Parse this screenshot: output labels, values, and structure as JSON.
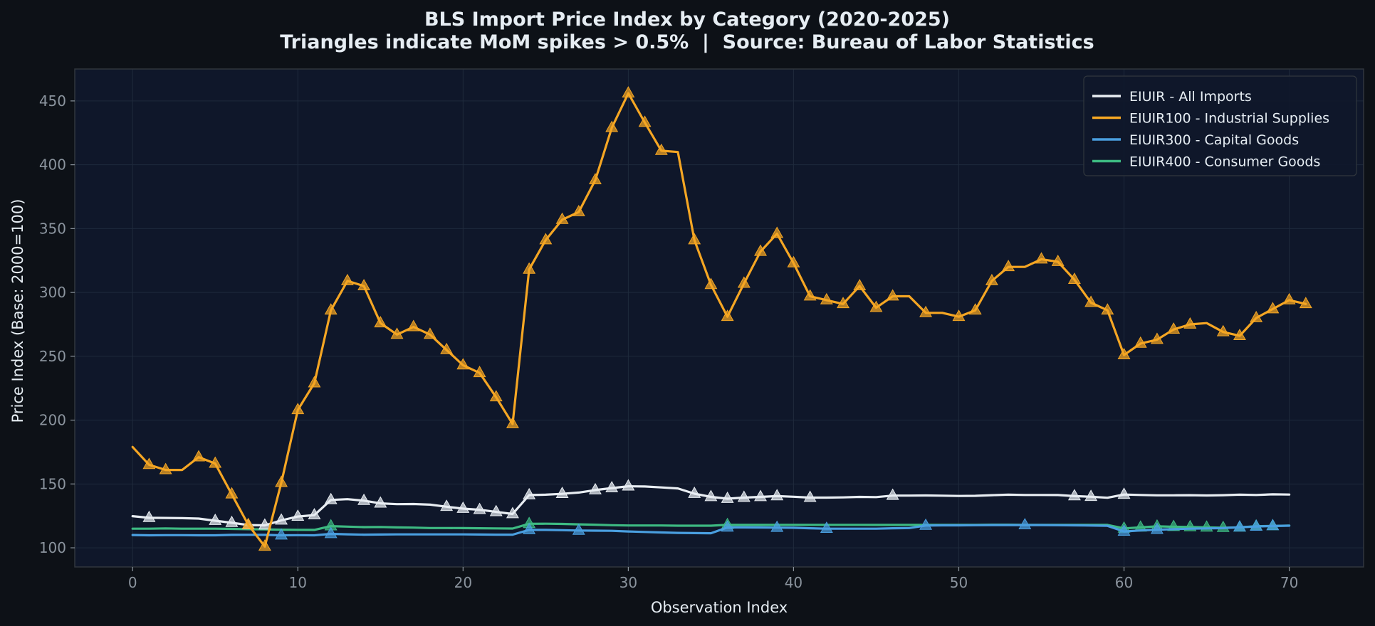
{
  "chart_data": {
    "type": "line",
    "title": "BLS Import Price Index by Category (2020-2025)",
    "subtitle": "Triangles indicate MoM spikes > 0.5%  |  Source: Bureau of Labor Statistics",
    "xlabel": "Observation Index",
    "ylabel": "Price Index (Base: 2000=100)",
    "xlim": [
      -3.5,
      74.5
    ],
    "ylim": [
      85,
      475
    ],
    "xticks": [
      0,
      10,
      20,
      30,
      40,
      50,
      60,
      70
    ],
    "yticks": [
      100,
      150,
      200,
      250,
      300,
      350,
      400,
      450
    ],
    "grid": true,
    "legend_position": "top-right",
    "background": "#0d1117",
    "plot_background": "#0f172a",
    "series": [
      {
        "name": "EIUIR - All Imports",
        "color": "#e8edf2",
        "x": [
          0,
          1,
          2,
          3,
          4,
          5,
          6,
          7,
          8,
          9,
          10,
          11,
          12,
          13,
          14,
          15,
          16,
          17,
          18,
          19,
          20,
          21,
          22,
          23,
          24,
          25,
          26,
          27,
          28,
          29,
          30,
          31,
          32,
          33,
          34,
          35,
          36,
          37,
          38,
          39,
          40,
          41,
          42,
          43,
          44,
          45,
          46,
          47,
          48,
          49,
          50,
          51,
          52,
          53,
          54,
          55,
          56,
          57,
          58,
          59,
          60,
          61,
          62,
          63,
          64,
          65,
          66,
          67,
          68,
          69,
          70
        ],
        "values": [
          124.8,
          123.5,
          123.4,
          123.2,
          122.9,
          121.2,
          119.6,
          117.8,
          117.6,
          121.5,
          124.5,
          125.6,
          137.5,
          138.1,
          136.9,
          134.8,
          134.2,
          134.3,
          133.8,
          132.2,
          130.7,
          129.8,
          128.1,
          126.5,
          141.3,
          141.6,
          142.3,
          143.3,
          145.2,
          146.8,
          148.2,
          148.0,
          147.3,
          146.5,
          142.4,
          139.9,
          138.5,
          139.3,
          139.9,
          140.5,
          140.0,
          139.3,
          139.3,
          139.5,
          139.9,
          139.7,
          140.9,
          140.9,
          141.0,
          140.8,
          140.6,
          140.7,
          141.2,
          141.6,
          141.4,
          141.4,
          141.3,
          140.5,
          140.0,
          139.2,
          141.7,
          141.4,
          141.1,
          141.1,
          141.2,
          141.0,
          141.2,
          141.6,
          141.4,
          141.9,
          141.7
        ],
        "spikes": [
          1,
          5,
          6,
          7,
          8,
          9,
          10,
          11,
          12,
          14,
          15,
          19,
          20,
          21,
          22,
          23,
          24,
          26,
          28,
          29,
          30,
          34,
          35,
          36,
          37,
          38,
          39,
          41,
          46,
          57,
          58,
          60
        ]
      },
      {
        "name": "EIUIR100 - Industrial Supplies",
        "color": "#f5a623",
        "x": [
          0,
          1,
          2,
          3,
          4,
          5,
          6,
          7,
          8,
          9,
          10,
          11,
          12,
          13,
          14,
          15,
          16,
          17,
          18,
          19,
          20,
          21,
          22,
          23,
          24,
          25,
          26,
          27,
          28,
          29,
          30,
          31,
          32,
          33,
          34,
          35,
          36,
          37,
          38,
          39,
          40,
          41,
          42,
          43,
          44,
          45,
          46,
          47,
          48,
          49,
          50,
          51,
          52,
          53,
          54,
          55,
          56,
          57,
          58,
          59,
          60,
          61,
          62,
          63,
          64,
          65,
          66,
          67,
          68,
          69,
          70,
          71
        ],
        "values": [
          179,
          165,
          161,
          161,
          171,
          166,
          142,
          118,
          101,
          151,
          208,
          229,
          286,
          309,
          305,
          276,
          267,
          273,
          267,
          255,
          243,
          237,
          218,
          197,
          318,
          341,
          357,
          363,
          388,
          429,
          456,
          433,
          411,
          410,
          341,
          306,
          281,
          307,
          332,
          346,
          323,
          297,
          294,
          291,
          305,
          288,
          297,
          297,
          284,
          284,
          281,
          286,
          309,
          320,
          320,
          326,
          324,
          310,
          292,
          286,
          251,
          260,
          263,
          271,
          275,
          276,
          269,
          266,
          280,
          287,
          294,
          291
        ],
        "spikes": [
          1,
          2,
          4,
          5,
          6,
          7,
          8,
          9,
          10,
          11,
          12,
          13,
          14,
          15,
          16,
          17,
          18,
          19,
          20,
          21,
          22,
          23,
          24,
          25,
          26,
          27,
          28,
          29,
          30,
          31,
          32,
          34,
          35,
          36,
          37,
          38,
          39,
          40,
          41,
          42,
          43,
          44,
          45,
          46,
          48,
          50,
          51,
          52,
          53,
          55,
          56,
          57,
          58,
          59,
          60,
          61,
          62,
          63,
          64,
          66,
          67,
          68,
          69,
          70,
          71
        ]
      },
      {
        "name": "EIUIR300 - Capital Goods",
        "color": "#4a9fe0",
        "x": [
          0,
          1,
          2,
          3,
          4,
          5,
          6,
          7,
          8,
          9,
          10,
          11,
          12,
          13,
          14,
          15,
          16,
          17,
          18,
          19,
          20,
          21,
          22,
          23,
          24,
          25,
          26,
          27,
          28,
          29,
          30,
          31,
          32,
          33,
          34,
          35,
          36,
          37,
          38,
          39,
          40,
          41,
          42,
          43,
          44,
          45,
          46,
          47,
          48,
          49,
          50,
          51,
          52,
          53,
          54,
          55,
          56,
          57,
          58,
          59,
          60,
          61,
          62,
          63,
          64,
          65,
          66,
          67,
          68,
          69,
          70
        ],
        "values": [
          110.0,
          109.8,
          109.9,
          109.9,
          109.8,
          109.8,
          110.1,
          110.2,
          110.1,
          109.8,
          109.9,
          109.8,
          110.9,
          110.6,
          110.3,
          110.4,
          110.5,
          110.5,
          110.5,
          110.5,
          110.5,
          110.4,
          110.3,
          110.3,
          114.0,
          114.0,
          113.8,
          113.5,
          113.4,
          113.3,
          112.8,
          112.4,
          112.0,
          111.7,
          111.5,
          111.4,
          116.0,
          116.0,
          115.9,
          115.8,
          115.7,
          115.3,
          115.0,
          115.0,
          115.0,
          115.0,
          115.3,
          115.5,
          117.4,
          117.6,
          117.6,
          117.7,
          117.8,
          117.8,
          117.8,
          117.8,
          117.7,
          117.6,
          117.4,
          117.2,
          112.8,
          113.6,
          114.2,
          114.6,
          115.0,
          115.2,
          115.4,
          116.1,
          116.7,
          117.1,
          117.3
        ],
        "spikes": [
          9,
          12,
          24,
          27,
          36,
          39,
          42,
          48,
          54,
          60,
          62,
          67,
          68,
          69
        ]
      },
      {
        "name": "EIUIR400 - Consumer Goods",
        "color": "#3dba82",
        "x": [
          0,
          1,
          2,
          3,
          4,
          5,
          6,
          7,
          8,
          9,
          10,
          11,
          12,
          13,
          14,
          15,
          16,
          17,
          18,
          19,
          20,
          21,
          22,
          23,
          24,
          25,
          26,
          27,
          28,
          29,
          30,
          31,
          32,
          33,
          34,
          35,
          36,
          37,
          38,
          39,
          40,
          41,
          42,
          43,
          44,
          45,
          46,
          47,
          48,
          49,
          50,
          51,
          52,
          53,
          54,
          55,
          56,
          57,
          58,
          59,
          60,
          61,
          62,
          63,
          64,
          65,
          66,
          67,
          68,
          69,
          70
        ],
        "values": [
          115.0,
          115.0,
          115.2,
          115.0,
          115.0,
          115.0,
          114.8,
          114.6,
          114.4,
          114.2,
          114.1,
          114.0,
          117.0,
          116.6,
          116.2,
          116.3,
          116.0,
          115.8,
          115.5,
          115.5,
          115.4,
          115.3,
          115.2,
          115.1,
          118.8,
          118.9,
          118.7,
          118.4,
          118.1,
          117.7,
          117.5,
          117.5,
          117.5,
          117.3,
          117.3,
          117.3,
          118.0,
          117.9,
          117.9,
          118.0,
          118.0,
          118.0,
          118.0,
          118.0,
          118.0,
          117.9,
          117.9,
          118.0,
          117.9,
          117.9,
          117.9,
          118.0,
          118.1,
          118.1,
          118.0,
          118.0,
          118.0,
          118.0,
          118.0,
          117.9,
          115.2,
          116.0,
          116.8,
          116.5,
          116.3,
          116.0,
          115.7,
          116.0,
          116.9,
          117.1,
          117.4
        ],
        "spikes": [
          12,
          24,
          36,
          60,
          61,
          62,
          63,
          64,
          65,
          66,
          67,
          68,
          69
        ]
      }
    ]
  }
}
